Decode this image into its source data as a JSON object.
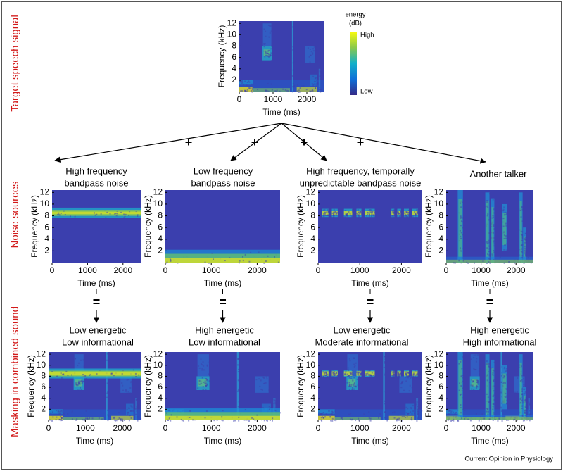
{
  "side_labels": [
    "Target speech signal",
    "Noise sources",
    "Masking in combined sound"
  ],
  "axes": {
    "x_label": "Time (ms)",
    "y_label": "Frequency (kHz)",
    "xticks": [
      0,
      1000,
      2000
    ],
    "yticks": [
      2,
      4,
      6,
      8,
      10,
      12
    ]
  },
  "colorbar": {
    "title": [
      "energy",
      "(dB)"
    ],
    "high": "High",
    "low": "Low"
  },
  "operators": {
    "plus": "+",
    "equals": "="
  },
  "noise_sources": [
    {
      "title": [
        "High frequency",
        "bandpass noise"
      ]
    },
    {
      "title": [
        "Low frequency",
        "bandpass noise"
      ]
    },
    {
      "title": [
        "High frequency, temporally",
        "unpredictable bandpass noise"
      ]
    },
    {
      "title": [
        "Another talker"
      ]
    }
  ],
  "results": [
    {
      "title": [
        "Low energetic",
        "Low informational"
      ]
    },
    {
      "title": [
        "High energetic",
        "Low informational"
      ]
    },
    {
      "title": [
        "Low energetic",
        "Moderate informational"
      ]
    },
    {
      "title": [
        "High energetic",
        "High informational"
      ]
    }
  ],
  "credit": "Current Opinion in Physiology"
}
